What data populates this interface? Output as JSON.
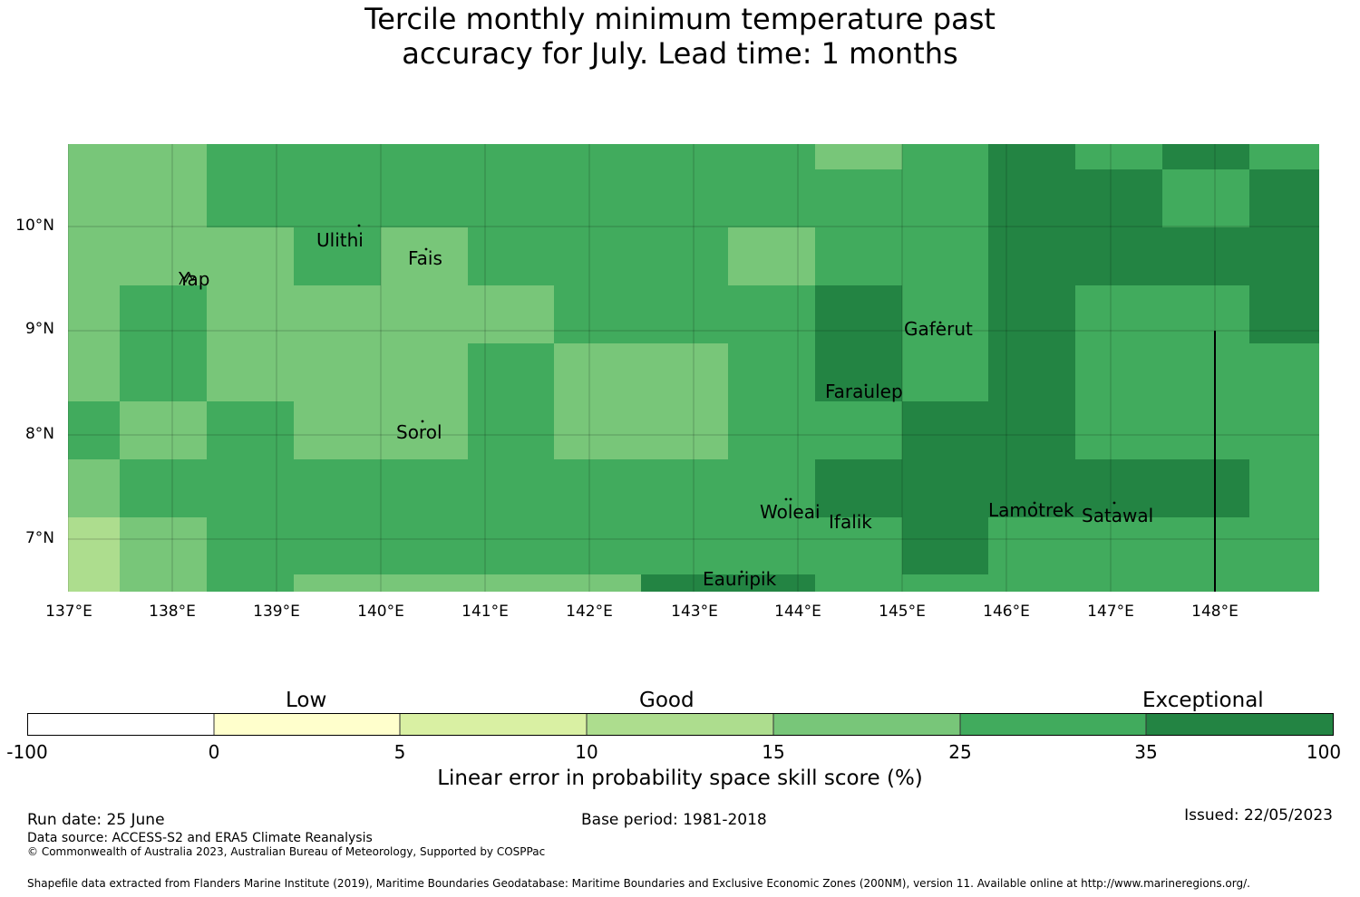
{
  "title": {
    "line1": "Tercile monthly minimum temperature past",
    "line2": "accuracy for July. Lead time: 1 months"
  },
  "colors": {
    "c15_25": "#78c679",
    "c25_35": "#41ab5d",
    "c35_100": "#238443",
    "c10_15": "#addd8e",
    "c5_10": "#d9f0a3",
    "c0_5": "#ffffcc",
    "cneg": "#ffffff"
  },
  "map": {
    "lon_range": [
      137,
      149
    ],
    "lat_range": [
      6.5,
      10.8
    ],
    "lat_ticks": [
      "10°N",
      "9°N",
      "8°N",
      "7°N"
    ],
    "lon_ticks": [
      "137°E",
      "138°E",
      "139°E",
      "140°E",
      "141°E",
      "142°E",
      "143°E",
      "144°E",
      "145°E",
      "146°E",
      "147°E",
      "148°E"
    ],
    "places": [
      "Ulithi",
      "Fais",
      "Yap",
      "Gaferut",
      "Faraulep",
      "Sorol",
      "Woleai",
      "Ifalik",
      "Lamotrek",
      "Satawal",
      "Eauripik"
    ]
  },
  "colorbar": {
    "categories": [
      "Low",
      "Good",
      "Exceptional"
    ],
    "ticks": [
      "-100",
      "0",
      "5",
      "10",
      "15",
      "25",
      "35",
      "100"
    ],
    "label": "Linear error in probability space skill score (%)"
  },
  "footer": {
    "run_date": "Run date: 25 June",
    "base_period": "Base period: 1981-2018",
    "issued": "Issued: 22/05/2023",
    "data_source": "Data source: ACCESS-S2 and ERA5 Climate Reanalysis",
    "copyright": "© Commonwealth of Australia 2023, Australian Bureau of Meteorology, Supported by COSPPac",
    "shapefile": "Shapefile data extracted from Flanders Marine Institute (2019), Maritime Boundaries Geodatabase: Maritime Boundaries and Exclusive Economic Zones (200NM), version 11. Available online at http://www.marineregions.org/."
  }
}
